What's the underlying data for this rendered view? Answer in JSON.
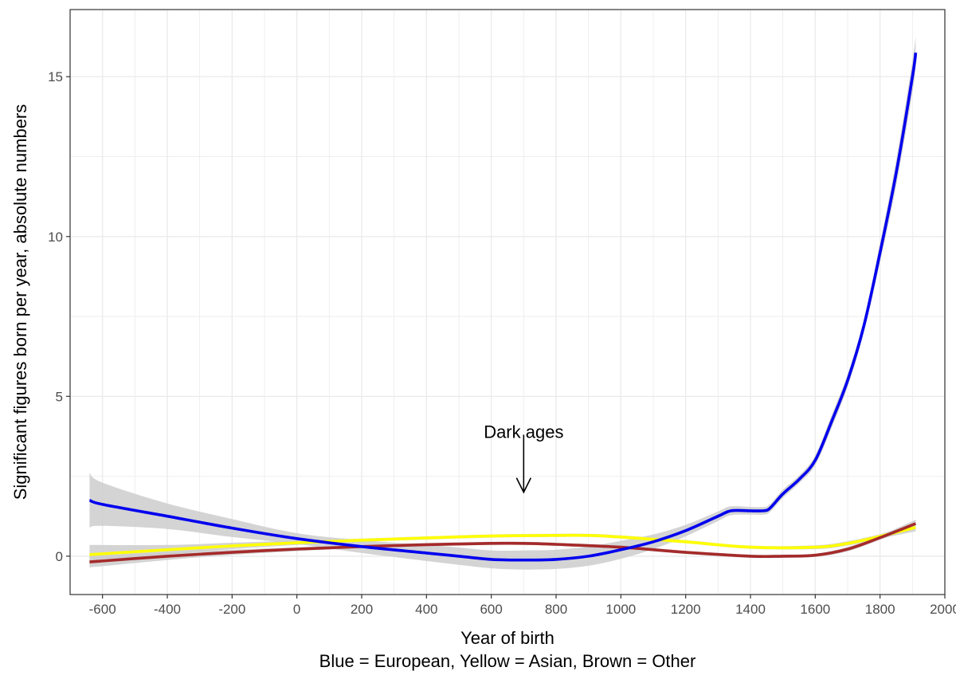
{
  "chart_data": {
    "type": "line",
    "title": "",
    "xlabel": "Year of birth",
    "caption": "Blue = European, Yellow = Asian, Brown = Other",
    "ylabel": "Significant figures born per year, absolute numbers",
    "xlim": [
      -700,
      2000
    ],
    "ylim": [
      -1.2,
      17.1
    ],
    "x_ticks": [
      -600,
      -400,
      -200,
      0,
      200,
      400,
      600,
      800,
      1000,
      1200,
      1400,
      1600,
      1800,
      2000
    ],
    "y_ticks": [
      0,
      5,
      10,
      15
    ],
    "x_tick_labels": [
      "-600",
      "-400",
      "-200",
      "0",
      "200",
      "400",
      "600",
      "800",
      "1000",
      "1200",
      "1400",
      "1600",
      "1800",
      "2000"
    ],
    "y_tick_labels": [
      "0",
      "5",
      "10",
      "15"
    ],
    "grid": true,
    "legend": "none",
    "annotation": {
      "text": "Dark ages",
      "x": 700,
      "y": 3.9,
      "arrow_from": 3.8,
      "arrow_to": 2.0
    },
    "colors": {
      "band": "#cccccc",
      "grid": "#ebebeb",
      "border": "#333333"
    },
    "series": [
      {
        "color": "#ffff00",
        "x": [
          -640,
          -400,
          -200,
          0,
          200,
          400,
          600,
          800,
          900,
          1000,
          1200,
          1400,
          1600,
          1700,
          1800,
          1910
        ],
        "y": [
          0.05,
          0.2,
          0.32,
          0.42,
          0.5,
          0.57,
          0.63,
          0.65,
          0.65,
          0.6,
          0.45,
          0.28,
          0.28,
          0.4,
          0.62,
          0.9
        ],
        "band_low": [
          -0.25,
          0.05,
          0.22,
          0.35,
          0.45,
          0.52,
          0.58,
          0.6,
          0.6,
          0.55,
          0.4,
          0.23,
          0.22,
          0.33,
          0.55,
          0.78
        ],
        "band_high": [
          0.35,
          0.35,
          0.42,
          0.49,
          0.55,
          0.62,
          0.68,
          0.7,
          0.7,
          0.65,
          0.5,
          0.33,
          0.34,
          0.47,
          0.69,
          1.02
        ]
      },
      {
        "color": "#a52a2a",
        "x": [
          -640,
          -400,
          -200,
          0,
          200,
          400,
          600,
          700,
          800,
          1000,
          1200,
          1400,
          1500,
          1600,
          1700,
          1800,
          1910
        ],
        "y": [
          -0.18,
          0.0,
          0.12,
          0.22,
          0.3,
          0.36,
          0.4,
          0.4,
          0.37,
          0.28,
          0.12,
          0.0,
          0.0,
          0.03,
          0.22,
          0.58,
          1.02
        ],
        "band_low": [
          -0.35,
          -0.12,
          0.04,
          0.16,
          0.25,
          0.31,
          0.35,
          0.35,
          0.32,
          0.23,
          0.07,
          -0.05,
          -0.05,
          -0.02,
          0.15,
          0.51,
          0.9
        ],
        "band_high": [
          -0.01,
          0.12,
          0.2,
          0.28,
          0.35,
          0.41,
          0.45,
          0.45,
          0.42,
          0.33,
          0.17,
          0.05,
          0.05,
          0.08,
          0.29,
          0.65,
          1.14
        ]
      },
      {
        "color": "#0000ee",
        "x": [
          -640,
          -600,
          -400,
          -200,
          0,
          200,
          400,
          500,
          600,
          700,
          800,
          900,
          1000,
          1100,
          1200,
          1300,
          1340,
          1400,
          1440,
          1460,
          1500,
          1550,
          1600,
          1650,
          1700,
          1750,
          1800,
          1850,
          1900,
          1910
        ],
        "y": [
          1.75,
          1.62,
          1.25,
          0.88,
          0.55,
          0.3,
          0.1,
          0.0,
          -0.1,
          -0.12,
          -0.1,
          0.0,
          0.2,
          0.45,
          0.8,
          1.25,
          1.42,
          1.42,
          1.42,
          1.5,
          1.95,
          2.4,
          3.0,
          4.2,
          5.5,
          7.2,
          9.5,
          12.0,
          15.0,
          15.75
        ],
        "band_low": [
          0.9,
          0.95,
          0.85,
          0.6,
          0.38,
          0.1,
          -0.15,
          -0.27,
          -0.38,
          -0.42,
          -0.4,
          -0.3,
          -0.08,
          0.22,
          0.62,
          1.1,
          1.28,
          1.3,
          1.3,
          1.38,
          1.82,
          2.28,
          2.85,
          4.0,
          5.3,
          7.0,
          9.2,
          11.6,
          14.5,
          15.3
        ],
        "band_high": [
          2.6,
          2.3,
          1.65,
          1.16,
          0.72,
          0.5,
          0.35,
          0.27,
          0.18,
          0.18,
          0.2,
          0.3,
          0.48,
          0.68,
          0.98,
          1.4,
          1.56,
          1.54,
          1.54,
          1.62,
          2.08,
          2.52,
          3.15,
          4.4,
          5.7,
          7.4,
          9.8,
          12.4,
          15.5,
          16.25
        ]
      }
    ]
  }
}
